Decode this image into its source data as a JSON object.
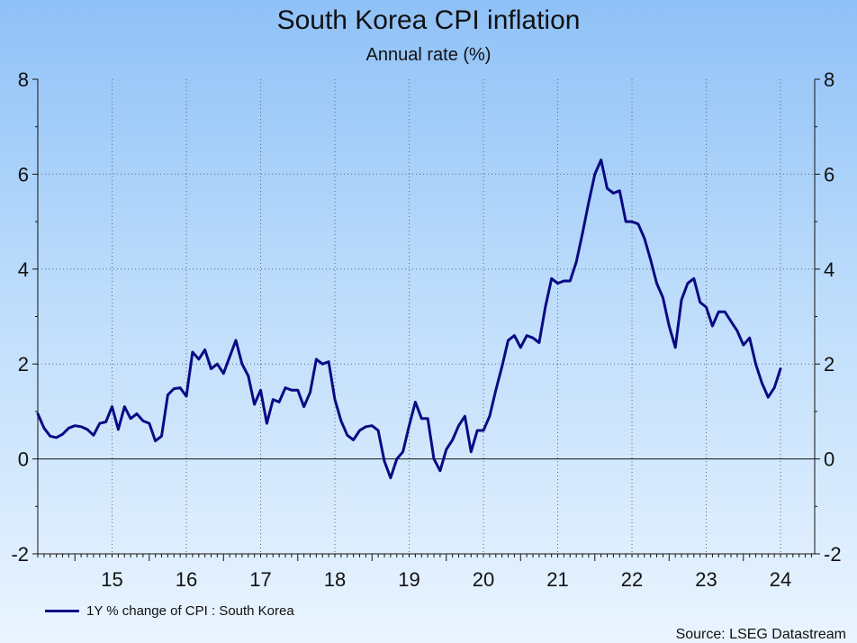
{
  "chart_data": {
    "type": "line",
    "title": "South Korea CPI inflation",
    "subtitle": "Annual rate (%)",
    "xlabel": "",
    "ylabel": "",
    "ylim": [
      -2,
      8
    ],
    "yticks": [
      -2,
      0,
      2,
      4,
      6,
      8
    ],
    "xlim": [
      2014.5,
      2024.96
    ],
    "x_tick_labels": [
      {
        "label": "15",
        "year": 2015
      },
      {
        "label": "16",
        "year": 2016
      },
      {
        "label": "17",
        "year": 2017
      },
      {
        "label": "18",
        "year": 2018
      },
      {
        "label": "19",
        "year": 2019
      },
      {
        "label": "20",
        "year": 2020
      },
      {
        "label": "21",
        "year": 2021
      },
      {
        "label": "22",
        "year": 2022
      },
      {
        "label": "23",
        "year": 2023
      },
      {
        "label": "24",
        "year": 2024
      }
    ],
    "grid": true,
    "legend_position": "bottom-left",
    "series": [
      {
        "name": "1Y % change of CPI : South Korea",
        "color": "#0a0a84",
        "start_year": 2014,
        "start_month": 7,
        "values": [
          0.95,
          0.65,
          0.48,
          0.45,
          0.52,
          0.65,
          0.7,
          0.68,
          0.62,
          0.5,
          0.75,
          0.78,
          1.1,
          0.62,
          1.1,
          0.85,
          0.95,
          0.8,
          0.75,
          0.38,
          0.48,
          1.35,
          1.48,
          1.5,
          1.32,
          2.25,
          2.1,
          2.3,
          1.9,
          2.0,
          1.8,
          2.15,
          2.5,
          2.0,
          1.75,
          1.15,
          1.45,
          0.75,
          1.25,
          1.2,
          1.5,
          1.45,
          1.45,
          1.1,
          1.4,
          2.1,
          2.0,
          2.05,
          1.25,
          0.8,
          0.5,
          0.4,
          0.6,
          0.68,
          0.7,
          0.6,
          -0.05,
          -0.4,
          0.0,
          0.15,
          0.7,
          1.2,
          0.85,
          0.85,
          0.0,
          -0.25,
          0.2,
          0.4,
          0.7,
          0.9,
          0.15,
          0.6,
          0.6,
          0.9,
          1.45,
          1.95,
          2.5,
          2.6,
          2.35,
          2.6,
          2.55,
          2.45,
          3.2,
          3.8,
          3.7,
          3.75,
          3.75,
          4.15,
          4.75,
          5.4,
          6.0,
          6.3,
          5.7,
          5.6,
          5.65,
          5.0,
          5.0,
          4.95,
          4.65,
          4.2,
          3.7,
          3.4,
          2.8,
          2.35,
          3.35,
          3.7,
          3.8,
          3.3,
          3.2,
          2.8,
          3.1,
          3.1,
          2.9,
          2.7,
          2.4,
          2.55,
          2.0,
          1.6,
          1.3,
          1.5,
          1.9
        ]
      }
    ],
    "source": "Source: LSEG Datastream"
  }
}
